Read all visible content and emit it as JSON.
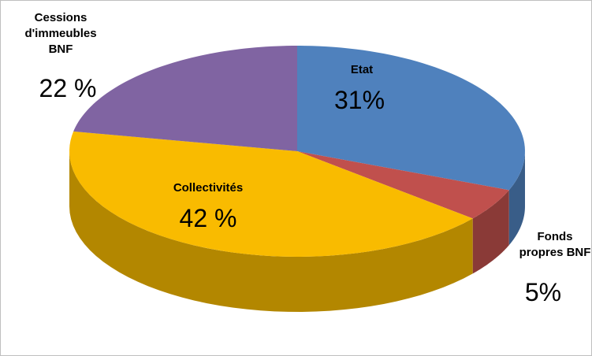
{
  "chart_data": {
    "type": "pie3d",
    "categories": [
      "Etat",
      "Fonds propres BNF",
      "Collectivités",
      "Cessions d'immeubles BNF"
    ],
    "values": [
      31,
      5,
      42,
      22
    ],
    "value_labels": [
      "31%",
      "5%",
      "42 %",
      "22 %"
    ],
    "colors": [
      "#4f81bd",
      "#c0504d",
      "#f9bb00",
      "#8064a2"
    ]
  }
}
